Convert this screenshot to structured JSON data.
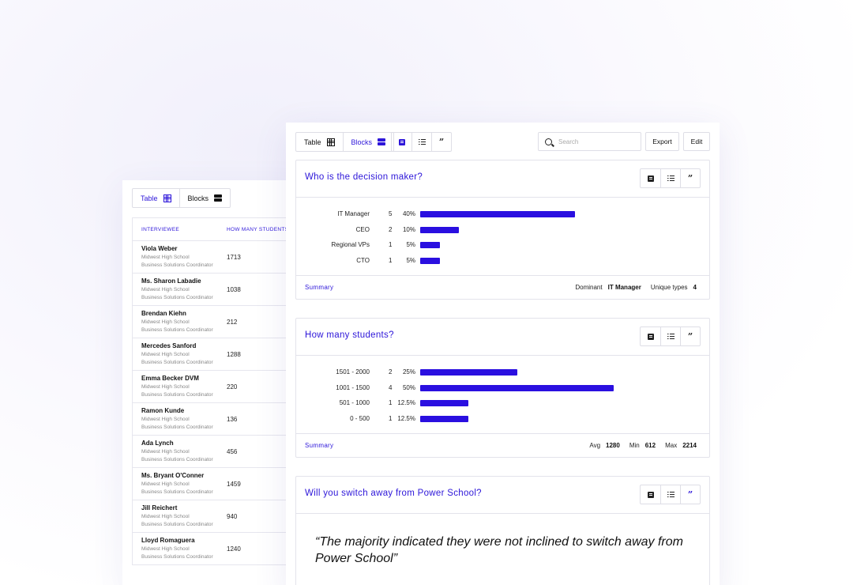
{
  "back": {
    "tabs": {
      "table": "Table",
      "blocks": "Blocks"
    },
    "columns": {
      "interviewee": "INTERVIEWEE",
      "students": "HOW MANY STUDENTS"
    },
    "rows": [
      {
        "name": "Viola Weber",
        "school": "Midwest High School",
        "role": "Business Solutions Coordinator",
        "students": "1713"
      },
      {
        "name": "Ms. Sharon Labadie",
        "school": "Midwest High School",
        "role": "Business Solutions Coordinator",
        "students": "1038"
      },
      {
        "name": "Brendan Kiehn",
        "school": "Midwest High School",
        "role": "Business Solutions Coordinator",
        "students": "212"
      },
      {
        "name": "Mercedes Sanford",
        "school": "Midwest High School",
        "role": "Business Solutions Coordinator",
        "students": "1288"
      },
      {
        "name": "Emma Becker DVM",
        "school": "Midwest High School",
        "role": "Business Solutions Coordinator",
        "students": "220"
      },
      {
        "name": "Ramon Kunde",
        "school": "Midwest High School",
        "role": "Business Solutions Coordinator",
        "students": "136"
      },
      {
        "name": "Ada Lynch",
        "school": "Midwest High School",
        "role": "Business Solutions Coordinator",
        "students": "456"
      },
      {
        "name": "Ms. Bryant O'Conner",
        "school": "Midwest High School",
        "role": "Business Solutions Coordinator",
        "students": "1459"
      },
      {
        "name": "Jill Reichert",
        "school": "Midwest High School",
        "role": "Business Solutions Coordinator",
        "students": "940"
      },
      {
        "name": "Lloyd Romaguera",
        "school": "Midwest High School",
        "role": "Business Solutions Coordinator",
        "students": "1240"
      }
    ]
  },
  "toolbar": {
    "table": "Table",
    "blocks": "Blocks",
    "search_placeholder": "Search",
    "export": "Export",
    "edit": "Edit"
  },
  "cards": {
    "decision": {
      "title": "Who is the decision maker?",
      "summary": "Summary",
      "stat1_label": "Dominant",
      "stat1_value": "IT Manager",
      "stat2_label": "Unique types",
      "stat2_value": "4",
      "rows": [
        {
          "label": "IT Manager",
          "count": "5",
          "pct": "40%",
          "share": 0.4
        },
        {
          "label": "CEO",
          "count": "2",
          "pct": "10%",
          "share": 0.1
        },
        {
          "label": "Regional VPs",
          "count": "1",
          "pct": "5%",
          "share": 0.05
        },
        {
          "label": "CTO",
          "count": "1",
          "pct": "5%",
          "share": 0.05
        }
      ]
    },
    "students": {
      "title": "How many students?",
      "summary": "Summary",
      "stat1_label": "Avg",
      "stat1_value": "1280",
      "stat2_label": "Min",
      "stat2_value": "612",
      "stat3_label": "Max",
      "stat3_value": "2214",
      "rows": [
        {
          "label": "1501 - 2000",
          "count": "2",
          "pct": "25%",
          "share": 0.25
        },
        {
          "label": "1001 - 1500",
          "count": "4",
          "pct": "50%",
          "share": 0.5
        },
        {
          "label": "501 - 1000",
          "count": "1",
          "pct": "12.5%",
          "share": 0.125
        },
        {
          "label": "0 - 500",
          "count": "1",
          "pct": "12.5%",
          "share": 0.125
        }
      ]
    },
    "switch": {
      "title": "Will you switch away from Power School?",
      "quote": "“The majority indicated they were not inclined to switch away from Power School”"
    }
  },
  "colors": {
    "accent": "#2d16d9",
    "bar": "#2a0fe0"
  },
  "icons": [
    "table-grid-icon",
    "blocks-icon",
    "document-icon",
    "list-icon",
    "quote-icon",
    "search-icon"
  ]
}
